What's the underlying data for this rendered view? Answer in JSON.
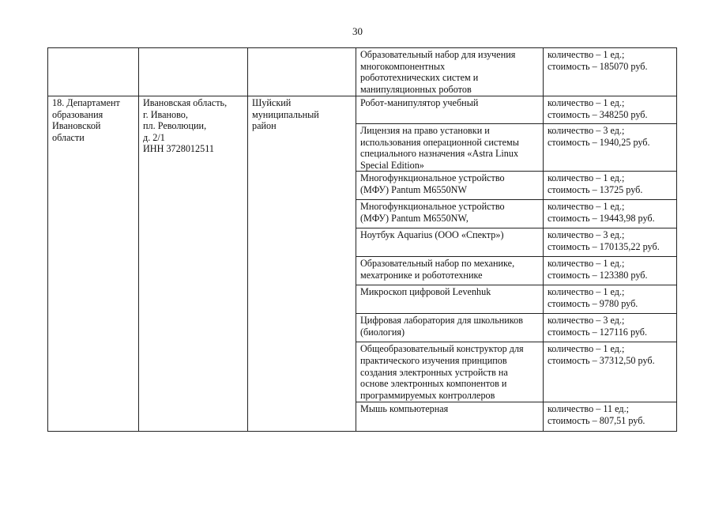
{
  "page_number": "30",
  "organization": {
    "name_lines": [
      "18. Департамент",
      "образования",
      "Ивановской",
      "области"
    ],
    "address_lines": [
      "Ивановская область,",
      "г. Иваново,",
      "пл. Революции,",
      "д. 2/1",
      "ИНН 3728012511"
    ],
    "district_lines": [
      "Шуйский",
      "муниципальный",
      "район"
    ]
  },
  "rows": [
    {
      "item_lines": [
        "Образовательный набор для изучения",
        "многокомпонентных",
        "робототехнических систем и",
        "манипуляционных роботов"
      ],
      "qty": "количество – 1 ед.;",
      "cost": "стоимость – 185070 руб."
    },
    {
      "item_lines": [
        "Робот-манипулятор учебный"
      ],
      "qty": "количество – 1 ед.;",
      "cost": "стоимость – 348250 руб."
    },
    {
      "item_lines": [
        "Лицензия на право установки и",
        "использования операционной системы",
        "специального назначения «Astra Linux",
        "Special Edition»"
      ],
      "qty": "количество – 3 ед.;",
      "cost": "стоимость – 1940,25 руб."
    },
    {
      "item_lines": [
        "Многофункциональное устройство",
        "(МФУ) Pantum M6550NW"
      ],
      "qty": "количество – 1 ед.;",
      "cost": "стоимость – 13725 руб."
    },
    {
      "item_lines": [
        "Многофункциональное устройство",
        "(МФУ) Pantum M6550NW,"
      ],
      "qty": "количество – 1 ед.;",
      "cost": "стоимость – 19443,98 руб."
    },
    {
      "item_lines": [
        "Ноутбук Aquarius (ООО «Спектр»)"
      ],
      "qty": "количество – 3 ед.;",
      "cost": "стоимость – 170135,22 руб."
    },
    {
      "item_lines": [
        "Образовательный набор по механике,",
        "мехатронике и робототехнике"
      ],
      "qty": "количество – 1 ед.;",
      "cost": "стоимость – 123380 руб."
    },
    {
      "item_lines": [
        "Микроскоп цифровой Levenhuk"
      ],
      "qty": "количество – 1 ед.;",
      "cost": "стоимость – 9780 руб."
    },
    {
      "item_lines": [
        "Цифровая лаборатория для школьников",
        "(биология)"
      ],
      "qty": "количество – 3 ед.;",
      "cost": "стоимость – 127116 руб."
    },
    {
      "item_lines": [
        "Общеобразовательный конструктор для",
        "практического изучения принципов",
        "создания электронных устройств на",
        "основе электронных компонентов и",
        "программируемых контроллеров"
      ],
      "qty": "количество – 1 ед.;",
      "cost": "стоимость – 37312,50 руб."
    },
    {
      "item_lines": [
        "Мышь компьютерная"
      ],
      "qty": "количество – 11 ед.;",
      "cost": "стоимость – 807,51 руб."
    }
  ]
}
